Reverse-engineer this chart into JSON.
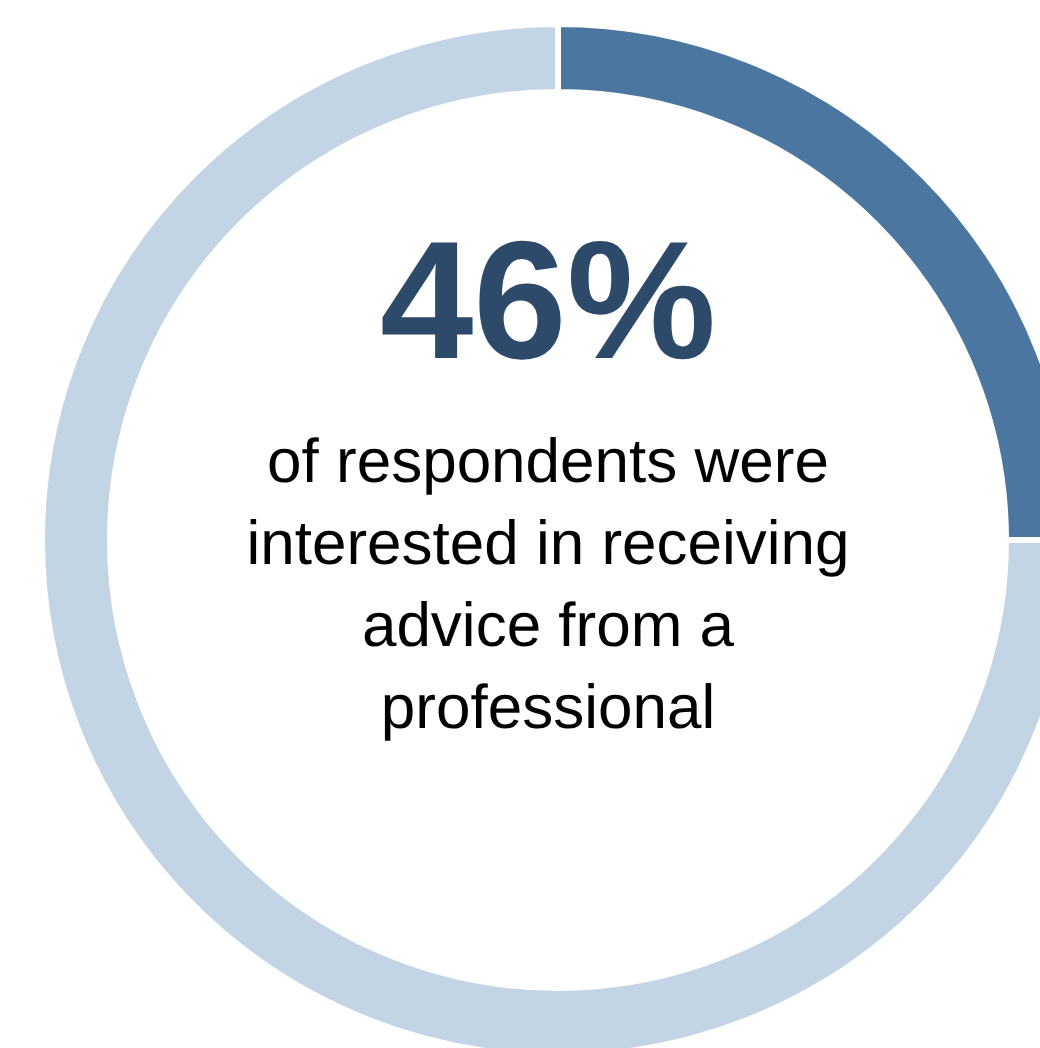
{
  "chart_data": {
    "type": "donut",
    "title": "46%",
    "subtitle": "of respondents were interested in receiving advice from a professional",
    "categories": [
      null,
      null
    ],
    "values": [
      25,
      75
    ],
    "colors": [
      "#4a76a0",
      "#c3d4e4"
    ],
    "legend": false
  }
}
